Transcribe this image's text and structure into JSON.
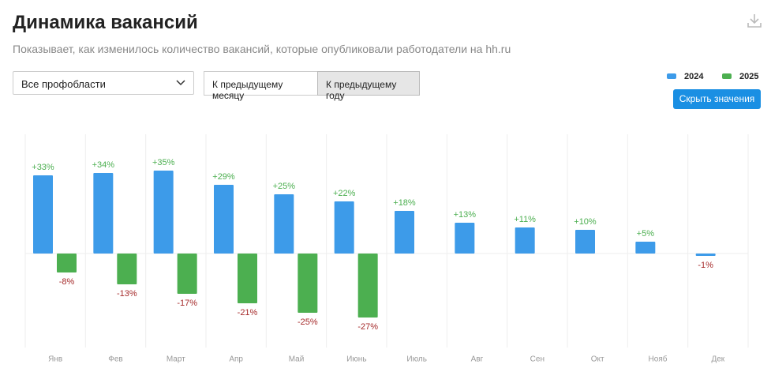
{
  "header": {
    "title": "Динамика вакансий",
    "subtitle": "Показывает, как изменилось количество вакансий, которые опубликовали работодатели на hh.ru"
  },
  "controls": {
    "dropdown": "Все профобласти",
    "toggles": [
      "К предыдущему месяцу",
      "К предыдущему году"
    ],
    "hide_button": "Скрыть значения"
  },
  "chart_data": {
    "type": "bar",
    "categories": [
      "Янв",
      "Фев",
      "Март",
      "Апр",
      "Май",
      "Июнь",
      "Июль",
      "Авг",
      "Сен",
      "Окт",
      "Нояб",
      "Дек"
    ],
    "series": [
      {
        "name": "2024",
        "color": "#3d9be9",
        "values": [
          33,
          34,
          35,
          29,
          25,
          22,
          18,
          13,
          11,
          10,
          5,
          -1
        ],
        "value_labels": [
          "+33%",
          "+34%",
          "+35%",
          "+29%",
          "+25%",
          "+22%",
          "+18%",
          "+13%",
          "+11%",
          "+10%",
          "+5%",
          "-1%"
        ]
      },
      {
        "name": "2025",
        "color": "#4caf50",
        "values": [
          -8,
          -13,
          -17,
          -21,
          -25,
          -27,
          null,
          null,
          null,
          null,
          null,
          null
        ],
        "value_labels": [
          "-8%",
          "-13%",
          "-17%",
          "-21%",
          "-25%",
          "-27%",
          null,
          null,
          null,
          null,
          null,
          null
        ]
      }
    ]
  }
}
